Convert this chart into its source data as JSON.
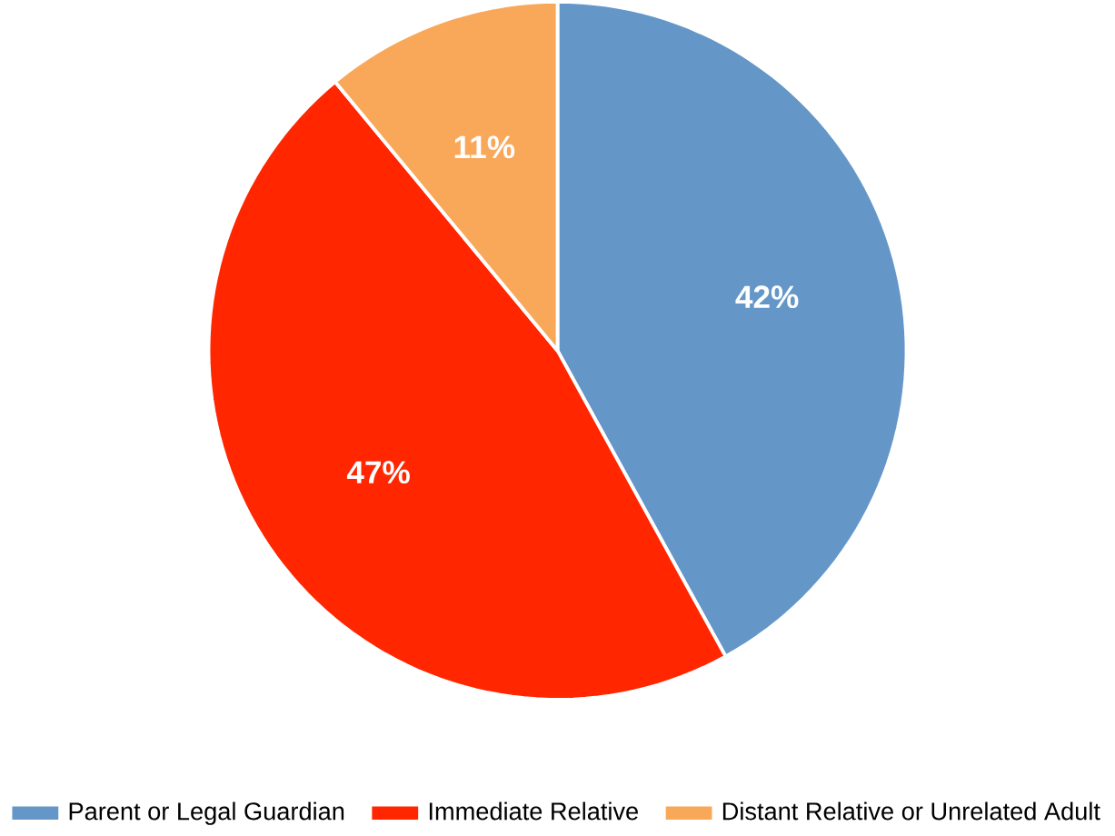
{
  "chart_data": {
    "type": "pie",
    "categories": [
      "Parent or Legal Guardian",
      "Immediate Relative",
      "Distant Relative or Unrelated Adult"
    ],
    "values": [
      42,
      47,
      11
    ],
    "colors": [
      "#6497c8",
      "#ff2600",
      "#f9a85a"
    ],
    "value_labels": [
      "42%",
      "47%",
      "11%"
    ],
    "legend": "bottom"
  }
}
